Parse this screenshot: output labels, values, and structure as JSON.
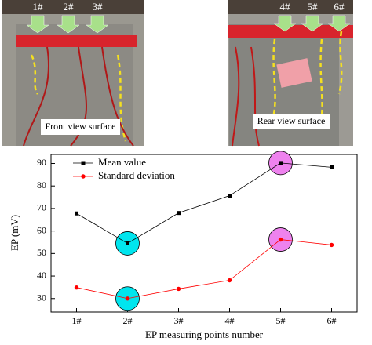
{
  "photos": {
    "front": {
      "labels": [
        "1#",
        "2#",
        "3#"
      ],
      "caption": "Front view surface"
    },
    "rear": {
      "labels": [
        "4#",
        "5#",
        "6#"
      ],
      "caption": "Rear view surface"
    }
  },
  "chart_data": {
    "type": "line",
    "ylabel": "EP (mV)",
    "xlabel": "EP measuring points number",
    "categories": [
      "1#",
      "2#",
      "3#",
      "4#",
      "5#",
      "6#"
    ],
    "series": [
      {
        "name": "Mean value",
        "color": "#000000",
        "marker": "square",
        "values": [
          67.8,
          54.5,
          68.0,
          75.7,
          90.2,
          88.3
        ],
        "highlight_colors": [
          null,
          "#00e5ee",
          null,
          null,
          "#ee82ee",
          null
        ]
      },
      {
        "name": "Standard deviation",
        "color": "#ff0000",
        "marker": "circle",
        "values": [
          34.9,
          30.0,
          34.3,
          38.1,
          56.2,
          53.8
        ],
        "highlight_colors": [
          null,
          "#00e5ee",
          null,
          null,
          "#ee82ee",
          null
        ]
      }
    ],
    "ylim": [
      24,
      94
    ],
    "yticks": [
      30,
      40,
      50,
      60,
      70,
      80,
      90
    ],
    "legend": "upper-left"
  }
}
